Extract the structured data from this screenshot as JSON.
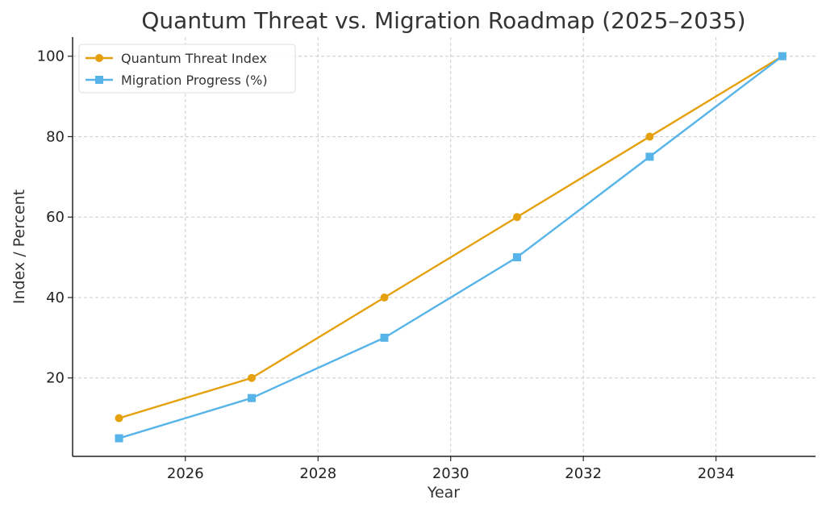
{
  "chart_data": {
    "type": "line",
    "title": "Quantum Threat vs. Migration Roadmap (2025–2035)",
    "xlabel": "Year",
    "ylabel": "Index / Percent",
    "x": [
      2025,
      2027,
      2029,
      2031,
      2033,
      2035
    ],
    "xlim": [
      2024.3,
      2035.5
    ],
    "ylim": [
      0.5,
      104.75
    ],
    "xticks": [
      2026,
      2028,
      2030,
      2032,
      2034
    ],
    "yticks": [
      20,
      40,
      60,
      80,
      100
    ],
    "grid": true,
    "legend_position": "top-left",
    "series": [
      {
        "name": "Quantum Threat Index",
        "values": [
          10,
          20,
          40,
          60,
          80,
          100
        ],
        "color": "#E5A00D",
        "marker": "circle"
      },
      {
        "name": "Migration Progress (%)",
        "values": [
          5,
          15,
          30,
          50,
          75,
          100
        ],
        "color": "#56B4E9",
        "marker": "square"
      }
    ]
  }
}
